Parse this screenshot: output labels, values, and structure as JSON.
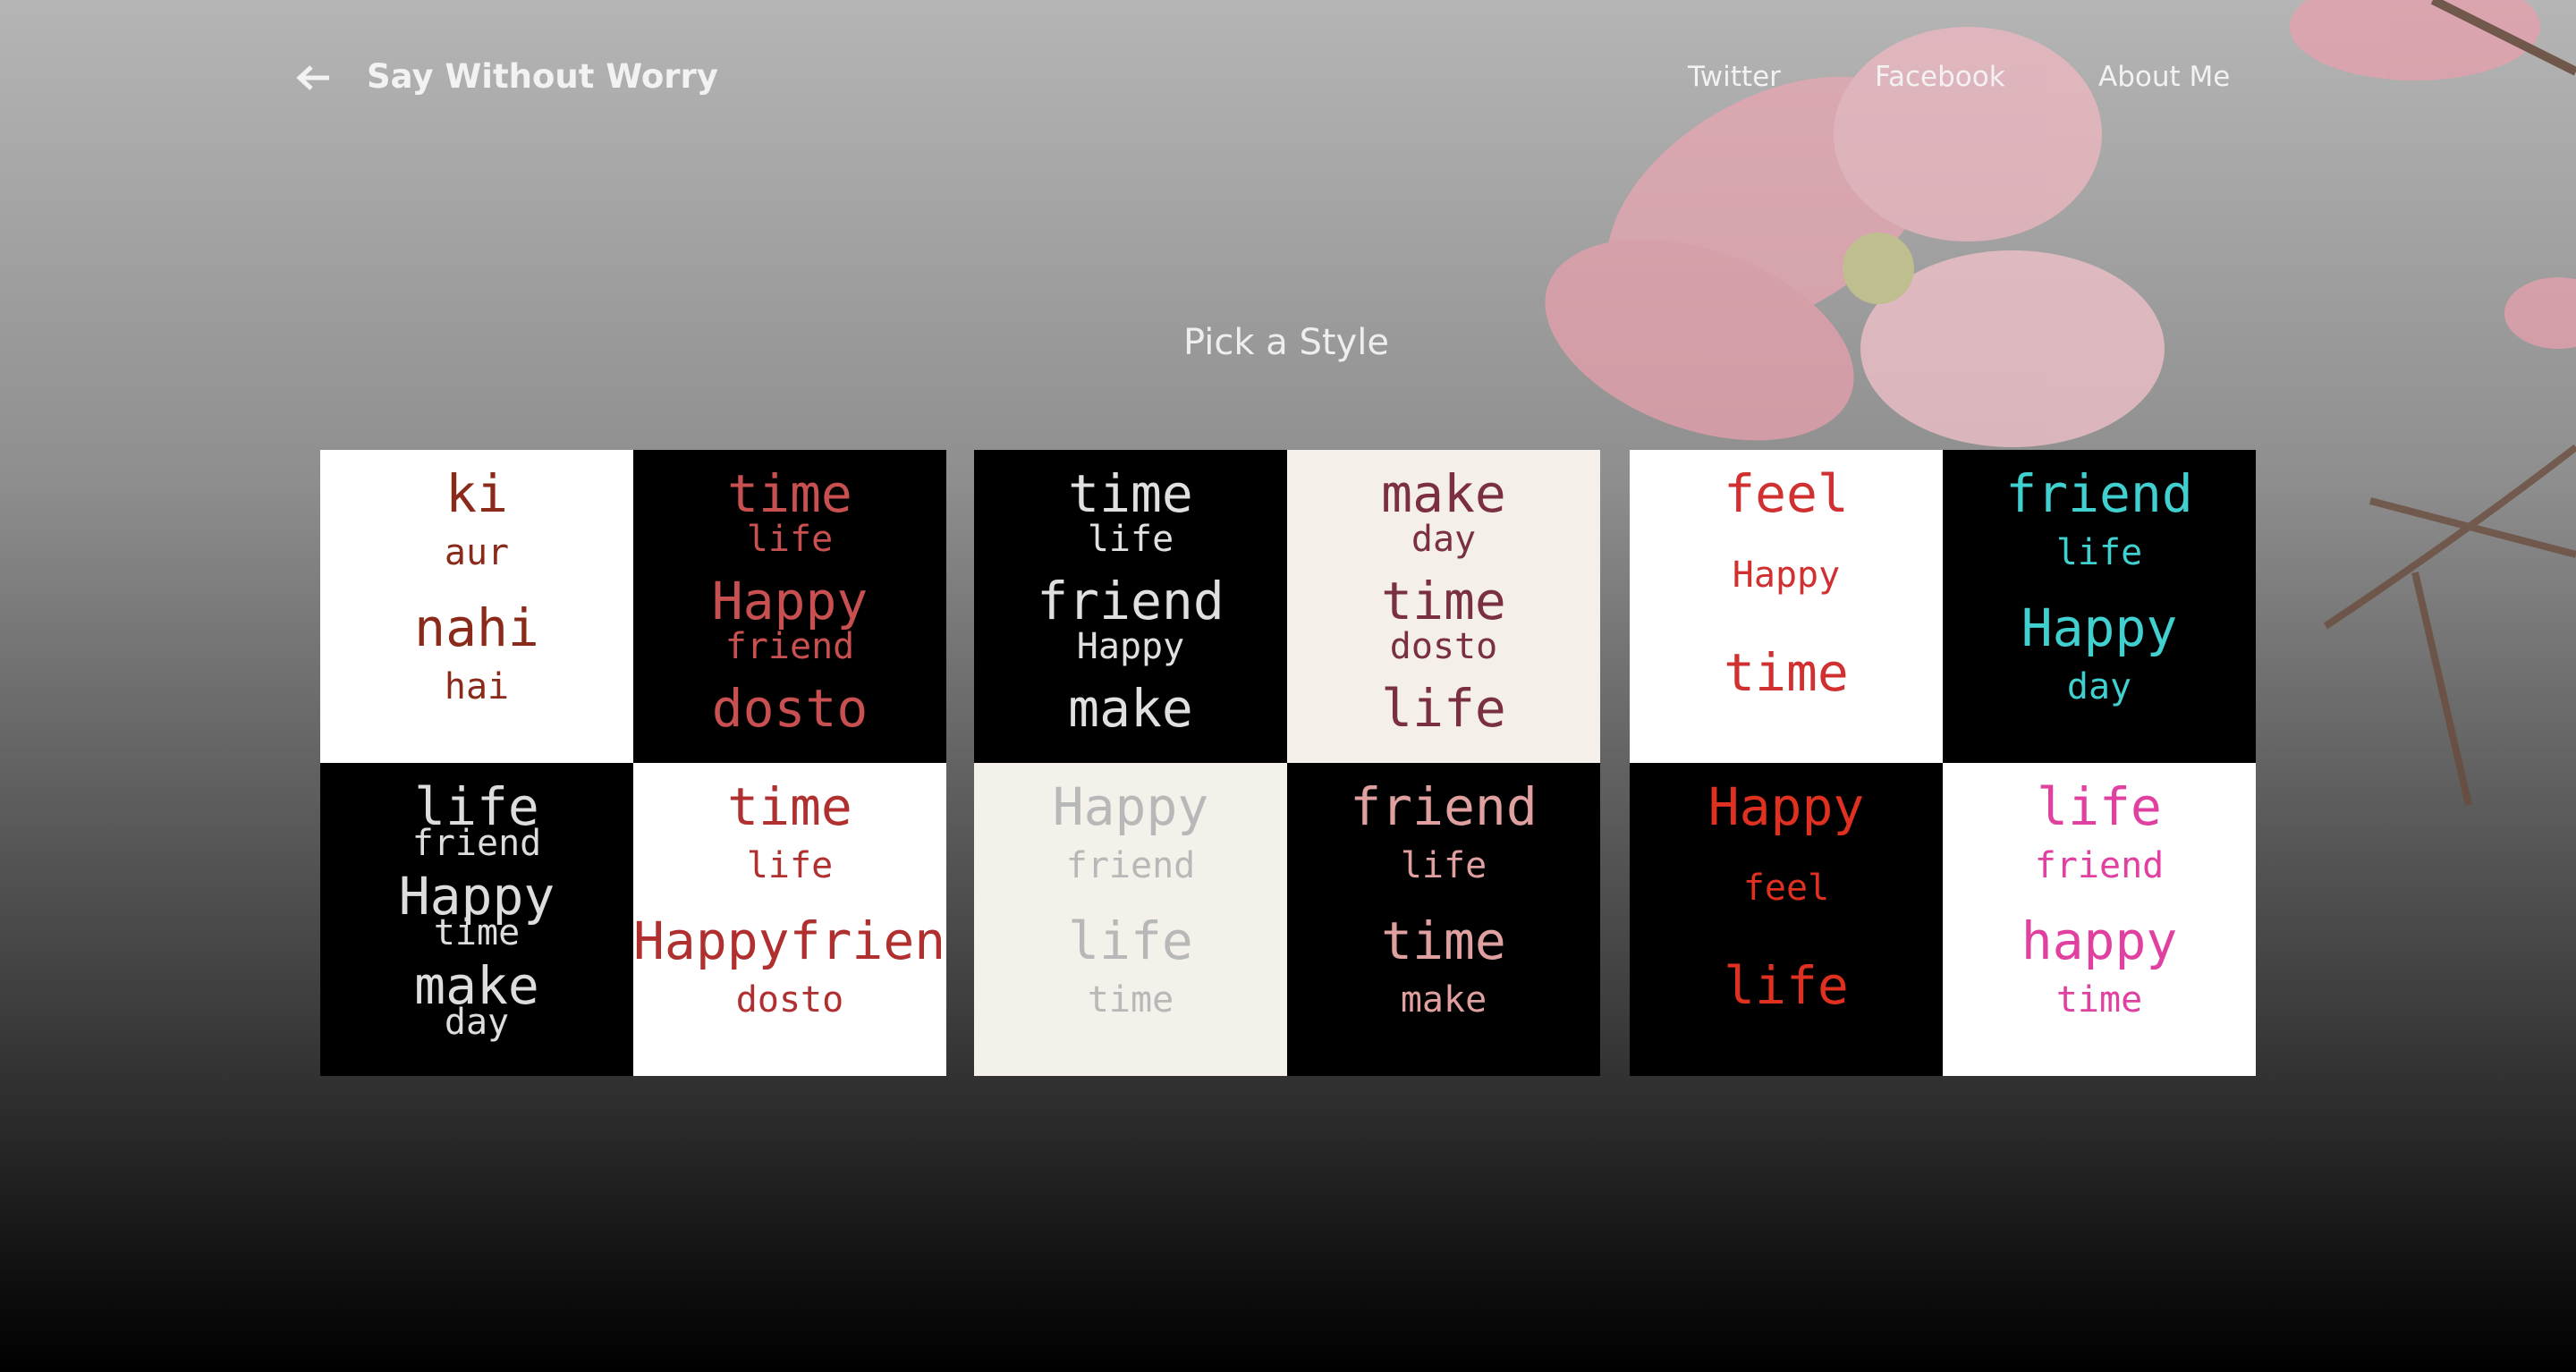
{
  "nav": {
    "title": "Say Without Worry",
    "links": [
      "Twitter",
      "Facebook",
      "About Me"
    ]
  },
  "heading": "Pick a Style",
  "styles": [
    {
      "tiles": [
        {
          "bg": "#ffffff",
          "color": "#8a2a1a",
          "words": [
            "ki",
            "aur",
            "nahi",
            "hai"
          ]
        },
        {
          "bg": "#000000",
          "color": "#c85050",
          "words": [
            "time",
            "life",
            "Happy",
            "friend",
            "dosto"
          ]
        },
        {
          "bg": "#000000",
          "color": "#dddddd",
          "words": [
            "life",
            "friend",
            "Happy",
            "time",
            "make",
            "day"
          ]
        },
        {
          "bg": "#ffffff",
          "color": "#b03030",
          "words": [
            "time",
            "life",
            "Happyfriend",
            "dosto"
          ]
        }
      ]
    },
    {
      "tiles": [
        {
          "bg": "#000000",
          "color": "#e0e0e0",
          "words": [
            "time",
            "life",
            "friend",
            "Happy",
            "make"
          ]
        },
        {
          "bg": "#f4efe8",
          "color": "#7a3040",
          "words": [
            "make",
            "day",
            "time",
            "dosto",
            "life"
          ]
        },
        {
          "bg": "#f4f0ea",
          "color": "#b8b8b8",
          "words": [
            "Happy",
            "friend",
            "life",
            "time"
          ]
        },
        {
          "bg": "#000000",
          "color": "#e0a0a0",
          "words": [
            "friend",
            "life",
            "time",
            "make"
          ]
        }
      ]
    },
    {
      "tiles": [
        {
          "bg": "#ffffff",
          "color": "#d03030",
          "words": [
            "feel",
            "Happy",
            "time"
          ]
        },
        {
          "bg": "#000000",
          "color": "#40d0d0",
          "words": [
            "friend",
            "life",
            "Happy",
            "day"
          ]
        },
        {
          "bg": "#000000",
          "color": "#e03020",
          "words": [
            "Happy",
            "feel",
            "life"
          ]
        },
        {
          "bg": "#ffffff",
          "color": "#e040a0",
          "words": [
            "life",
            "friend",
            "happy",
            "time"
          ]
        }
      ]
    }
  ]
}
